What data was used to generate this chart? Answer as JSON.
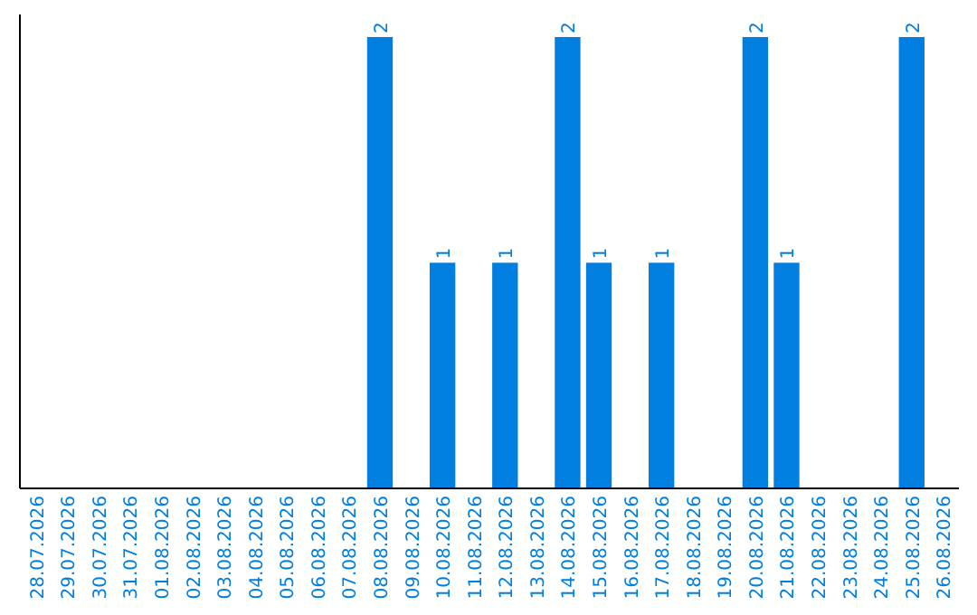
{
  "chart_data": {
    "type": "bar",
    "categories": [
      "28.07.2026",
      "29.07.2026",
      "30.07.2026",
      "31.07.2026",
      "01.08.2026",
      "02.08.2026",
      "03.08.2026",
      "04.08.2026",
      "05.08.2026",
      "06.08.2026",
      "07.08.2026",
      "08.08.2026",
      "09.08.2026",
      "10.08.2026",
      "11.08.2026",
      "12.08.2026",
      "13.08.2026",
      "14.08.2026",
      "15.08.2026",
      "16.08.2026",
      "17.08.2026",
      "18.08.2026",
      "19.08.2026",
      "20.08.2026",
      "21.08.2026",
      "22.08.2026",
      "23.08.2026",
      "24.08.2026",
      "25.08.2026",
      "26.08.2026"
    ],
    "values": [
      0,
      0,
      0,
      0,
      0,
      0,
      0,
      0,
      0,
      0,
      0,
      2,
      0,
      1,
      0,
      1,
      0,
      2,
      1,
      0,
      1,
      0,
      0,
      2,
      1,
      0,
      0,
      0,
      2,
      0
    ],
    "value_labels": [
      null,
      null,
      null,
      null,
      null,
      null,
      null,
      null,
      null,
      null,
      null,
      "2",
      null,
      "1",
      null,
      "1",
      null,
      "2",
      "1",
      null,
      "1",
      null,
      null,
      "2",
      "1",
      null,
      null,
      null,
      "2",
      null
    ],
    "color": "#007fe0",
    "ylim": [
      0,
      2.1
    ],
    "tick_labels": "x"
  }
}
